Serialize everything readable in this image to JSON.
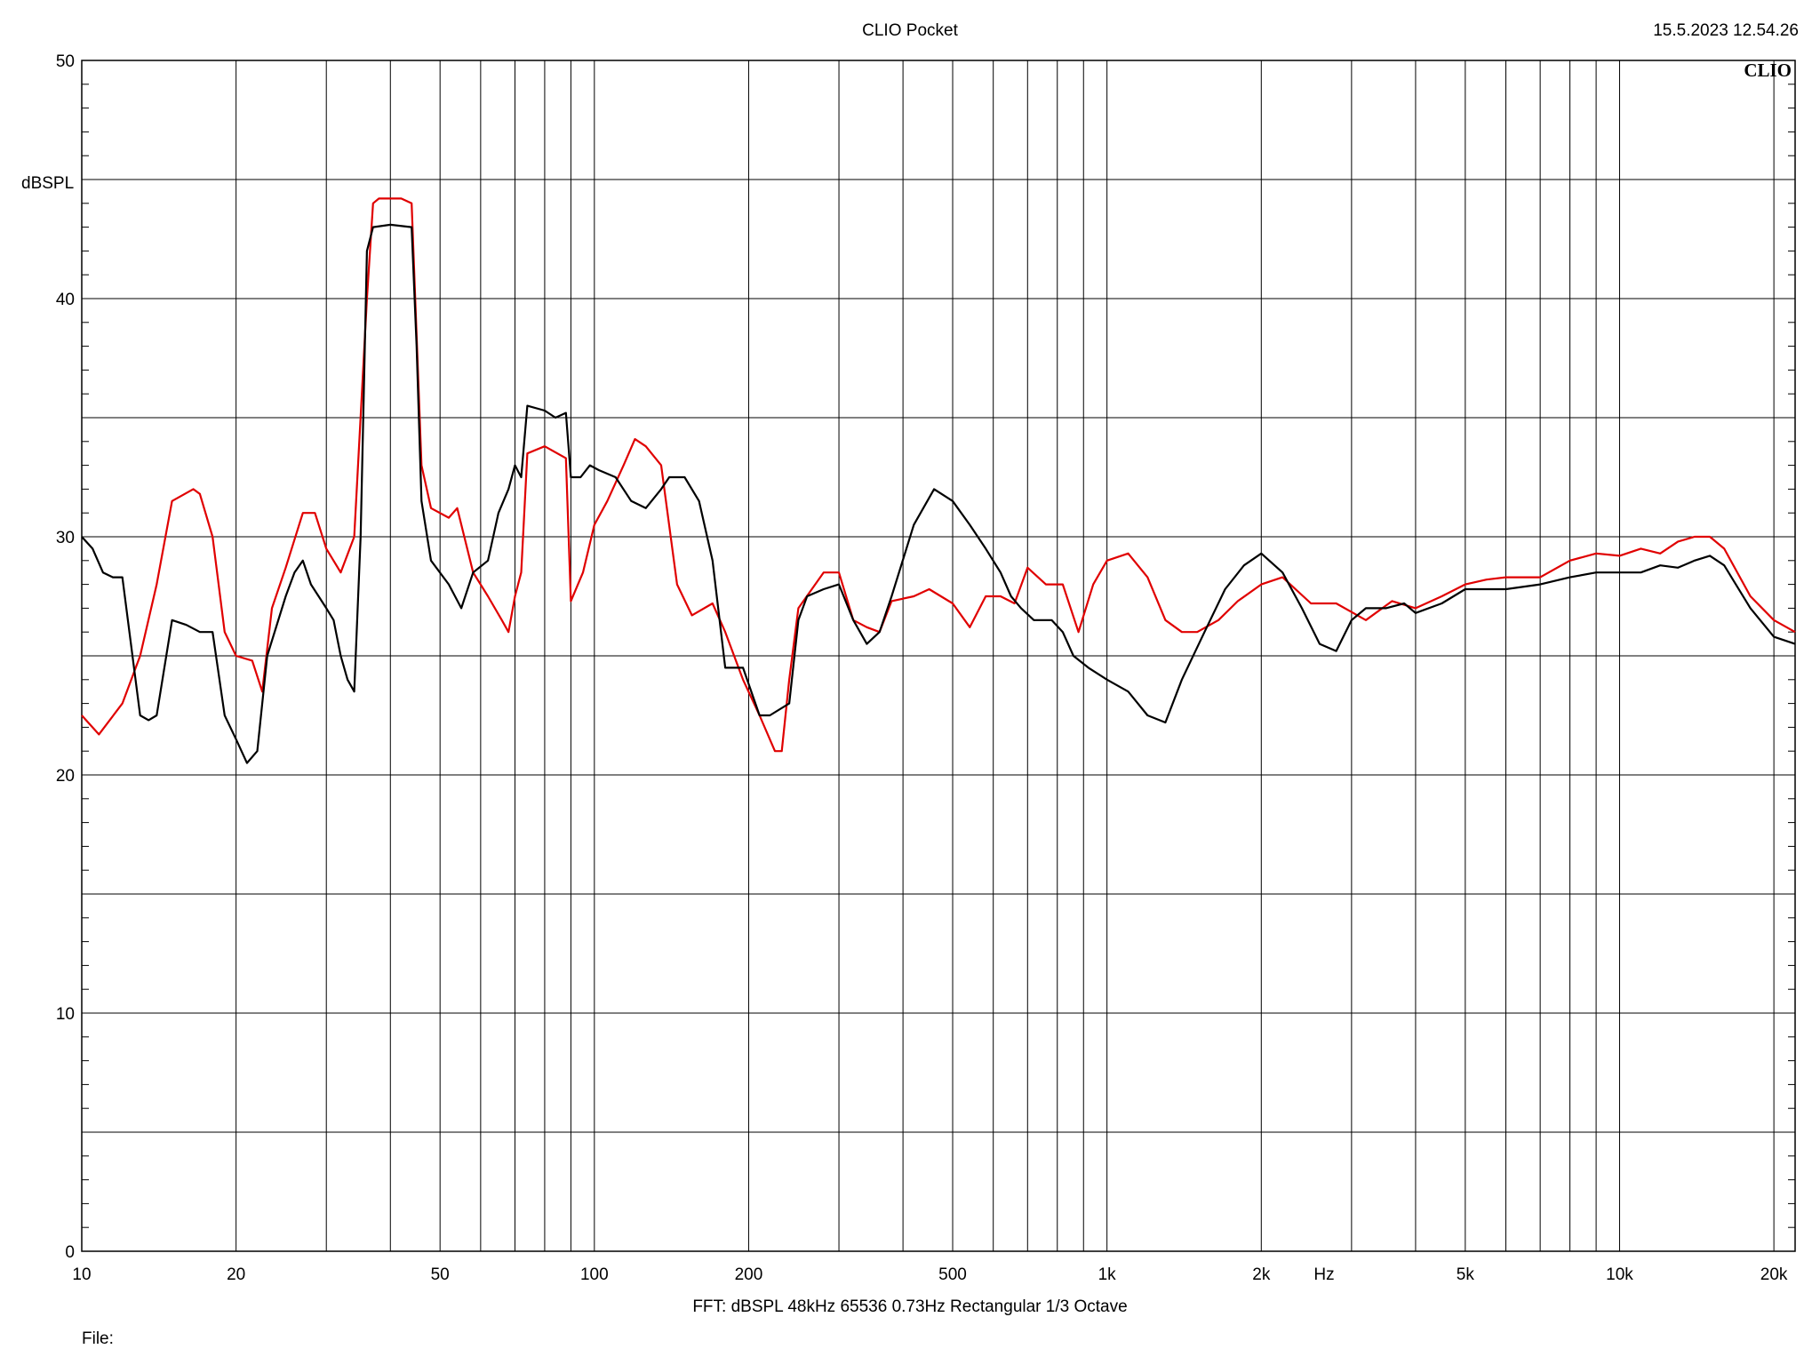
{
  "header": {
    "title": "CLIO Pocket",
    "timestamp": "15.5.2023 12.54.26",
    "brand": "CLIO"
  },
  "footer": {
    "fft_info": "FFT:  dBSPL  48kHz   65536  0.73Hz  Rectangular  1/3 Octave",
    "file_label": "File:"
  },
  "chart_data": {
    "type": "line",
    "x_scale": "log",
    "xlim": [
      10,
      22000
    ],
    "ylim": [
      0,
      50
    ],
    "ylabel": "dBSPL",
    "xlabel": "Hz",
    "grid": true,
    "x_ticks": [
      {
        "value": 10,
        "label": "10"
      },
      {
        "value": 20,
        "label": "20"
      },
      {
        "value": 50,
        "label": "50"
      },
      {
        "value": 100,
        "label": "100"
      },
      {
        "value": 200,
        "label": "200"
      },
      {
        "value": 500,
        "label": "500"
      },
      {
        "value": 1000,
        "label": "1k"
      },
      {
        "value": 2000,
        "label": "2k"
      },
      {
        "value": 5000,
        "label": "5k"
      },
      {
        "value": 10000,
        "label": "10k"
      },
      {
        "value": 20000,
        "label": "20k"
      }
    ],
    "y_ticks": [
      {
        "value": 0,
        "label": "0"
      },
      {
        "value": 10,
        "label": "10"
      },
      {
        "value": 20,
        "label": "20"
      },
      {
        "value": 30,
        "label": "30"
      },
      {
        "value": 40,
        "label": "40"
      },
      {
        "value": 50,
        "label": "50"
      }
    ],
    "series": [
      {
        "color": "#e00000",
        "points": [
          [
            10,
            22.5
          ],
          [
            10.8,
            21.7
          ],
          [
            12,
            23
          ],
          [
            13,
            25
          ],
          [
            14,
            28
          ],
          [
            15,
            31.5
          ],
          [
            16.5,
            32
          ],
          [
            17,
            31.8
          ],
          [
            18,
            30
          ],
          [
            19,
            26
          ],
          [
            20,
            25
          ],
          [
            21.5,
            24.8
          ],
          [
            22.5,
            23.5
          ],
          [
            23.5,
            27
          ],
          [
            25,
            28.7
          ],
          [
            27,
            31
          ],
          [
            28.5,
            31
          ],
          [
            30,
            29.5
          ],
          [
            32,
            28.5
          ],
          [
            34,
            30
          ],
          [
            36,
            40
          ],
          [
            37,
            44
          ],
          [
            38,
            44.2
          ],
          [
            42,
            44.2
          ],
          [
            44,
            44
          ],
          [
            46,
            33
          ],
          [
            48,
            31.2
          ],
          [
            52,
            30.8
          ],
          [
            54,
            31.2
          ],
          [
            58,
            28.5
          ],
          [
            62,
            27.5
          ],
          [
            66,
            26.5
          ],
          [
            68,
            26
          ],
          [
            70,
            27.5
          ],
          [
            72,
            28.5
          ],
          [
            74,
            33.5
          ],
          [
            80,
            33.8
          ],
          [
            88,
            33.3
          ],
          [
            90,
            27.3
          ],
          [
            95,
            28.5
          ],
          [
            100,
            30.5
          ],
          [
            106,
            31.5
          ],
          [
            114,
            33
          ],
          [
            120,
            34.1
          ],
          [
            126,
            33.8
          ],
          [
            135,
            33
          ],
          [
            145,
            28
          ],
          [
            155,
            26.7
          ],
          [
            170,
            27.2
          ],
          [
            180,
            26
          ],
          [
            195,
            24
          ],
          [
            210,
            22.5
          ],
          [
            225,
            21
          ],
          [
            232,
            21
          ],
          [
            240,
            24
          ],
          [
            250,
            27
          ],
          [
            280,
            28.5
          ],
          [
            300,
            28.5
          ],
          [
            320,
            26.5
          ],
          [
            340,
            26.2
          ],
          [
            360,
            26
          ],
          [
            380,
            27.3
          ],
          [
            420,
            27.5
          ],
          [
            450,
            27.8
          ],
          [
            500,
            27.2
          ],
          [
            540,
            26.2
          ],
          [
            580,
            27.5
          ],
          [
            620,
            27.5
          ],
          [
            660,
            27.2
          ],
          [
            700,
            28.7
          ],
          [
            760,
            28
          ],
          [
            820,
            28
          ],
          [
            880,
            26
          ],
          [
            940,
            28
          ],
          [
            1000,
            29
          ],
          [
            1100,
            29.3
          ],
          [
            1200,
            28.3
          ],
          [
            1300,
            26.5
          ],
          [
            1400,
            26
          ],
          [
            1500,
            26
          ],
          [
            1650,
            26.5
          ],
          [
            1800,
            27.3
          ],
          [
            2000,
            28
          ],
          [
            2200,
            28.3
          ],
          [
            2500,
            27.2
          ],
          [
            2800,
            27.2
          ],
          [
            3200,
            26.5
          ],
          [
            3600,
            27.3
          ],
          [
            4000,
            27
          ],
          [
            4500,
            27.5
          ],
          [
            5000,
            28
          ],
          [
            5500,
            28.2
          ],
          [
            6000,
            28.3
          ],
          [
            7000,
            28.3
          ],
          [
            8000,
            29
          ],
          [
            9000,
            29.3
          ],
          [
            10000,
            29.2
          ],
          [
            11000,
            29.5
          ],
          [
            12000,
            29.3
          ],
          [
            13000,
            29.8
          ],
          [
            14000,
            30
          ],
          [
            15000,
            30
          ],
          [
            16000,
            29.5
          ],
          [
            18000,
            27.5
          ],
          [
            20000,
            26.5
          ],
          [
            22000,
            26
          ]
        ]
      },
      {
        "color": "#000000",
        "points": [
          [
            10,
            30
          ],
          [
            10.5,
            29.5
          ],
          [
            11,
            28.5
          ],
          [
            11.5,
            28.3
          ],
          [
            12,
            28.3
          ],
          [
            13,
            22.5
          ],
          [
            13.5,
            22.3
          ],
          [
            14,
            22.5
          ],
          [
            15,
            26.5
          ],
          [
            16,
            26.3
          ],
          [
            17,
            26
          ],
          [
            18,
            26
          ],
          [
            19,
            22.5
          ],
          [
            20,
            21.5
          ],
          [
            21,
            20.5
          ],
          [
            22,
            21
          ],
          [
            23,
            25
          ],
          [
            25,
            27.5
          ],
          [
            26,
            28.5
          ],
          [
            27,
            29
          ],
          [
            28,
            28
          ],
          [
            30,
            27
          ],
          [
            31,
            26.5
          ],
          [
            32,
            25
          ],
          [
            33,
            24
          ],
          [
            34,
            23.5
          ],
          [
            35,
            30
          ],
          [
            36,
            42
          ],
          [
            37,
            43
          ],
          [
            40,
            43.1
          ],
          [
            44,
            43
          ],
          [
            45,
            38
          ],
          [
            46,
            31.5
          ],
          [
            48,
            29
          ],
          [
            52,
            28
          ],
          [
            55,
            27
          ],
          [
            58,
            28.5
          ],
          [
            62,
            29
          ],
          [
            65,
            31
          ],
          [
            68,
            32
          ],
          [
            70,
            33
          ],
          [
            72,
            32.5
          ],
          [
            74,
            35.5
          ],
          [
            80,
            35.3
          ],
          [
            84,
            35
          ],
          [
            88,
            35.2
          ],
          [
            90,
            32.5
          ],
          [
            94,
            32.5
          ],
          [
            98,
            33
          ],
          [
            102,
            32.8
          ],
          [
            110,
            32.5
          ],
          [
            118,
            31.5
          ],
          [
            126,
            31.2
          ],
          [
            135,
            32
          ],
          [
            140,
            32.5
          ],
          [
            150,
            32.5
          ],
          [
            160,
            31.5
          ],
          [
            170,
            29
          ],
          [
            180,
            24.5
          ],
          [
            195,
            24.5
          ],
          [
            210,
            22.5
          ],
          [
            220,
            22.5
          ],
          [
            240,
            23
          ],
          [
            250,
            26.5
          ],
          [
            260,
            27.5
          ],
          [
            280,
            27.8
          ],
          [
            300,
            28
          ],
          [
            320,
            26.5
          ],
          [
            340,
            25.5
          ],
          [
            360,
            26
          ],
          [
            380,
            27.5
          ],
          [
            420,
            30.5
          ],
          [
            460,
            32
          ],
          [
            500,
            31.5
          ],
          [
            540,
            30.5
          ],
          [
            580,
            29.5
          ],
          [
            620,
            28.5
          ],
          [
            650,
            27.5
          ],
          [
            680,
            27
          ],
          [
            720,
            26.5
          ],
          [
            780,
            26.5
          ],
          [
            820,
            26
          ],
          [
            860,
            25
          ],
          [
            920,
            24.5
          ],
          [
            1000,
            24
          ],
          [
            1100,
            23.5
          ],
          [
            1200,
            22.5
          ],
          [
            1300,
            22.2
          ],
          [
            1400,
            24
          ],
          [
            1550,
            26
          ],
          [
            1700,
            27.8
          ],
          [
            1850,
            28.8
          ],
          [
            2000,
            29.3
          ],
          [
            2200,
            28.5
          ],
          [
            2400,
            27
          ],
          [
            2600,
            25.5
          ],
          [
            2800,
            25.2
          ],
          [
            3000,
            26.5
          ],
          [
            3200,
            27
          ],
          [
            3500,
            27
          ],
          [
            3800,
            27.2
          ],
          [
            4000,
            26.8
          ],
          [
            4500,
            27.2
          ],
          [
            5000,
            27.8
          ],
          [
            5500,
            27.8
          ],
          [
            6000,
            27.8
          ],
          [
            7000,
            28
          ],
          [
            8000,
            28.3
          ],
          [
            9000,
            28.5
          ],
          [
            10000,
            28.5
          ],
          [
            11000,
            28.5
          ],
          [
            12000,
            28.8
          ],
          [
            13000,
            28.7
          ],
          [
            14000,
            29
          ],
          [
            15000,
            29.2
          ],
          [
            16000,
            28.8
          ],
          [
            18000,
            27
          ],
          [
            20000,
            25.8
          ],
          [
            22000,
            25.5
          ]
        ]
      }
    ]
  }
}
